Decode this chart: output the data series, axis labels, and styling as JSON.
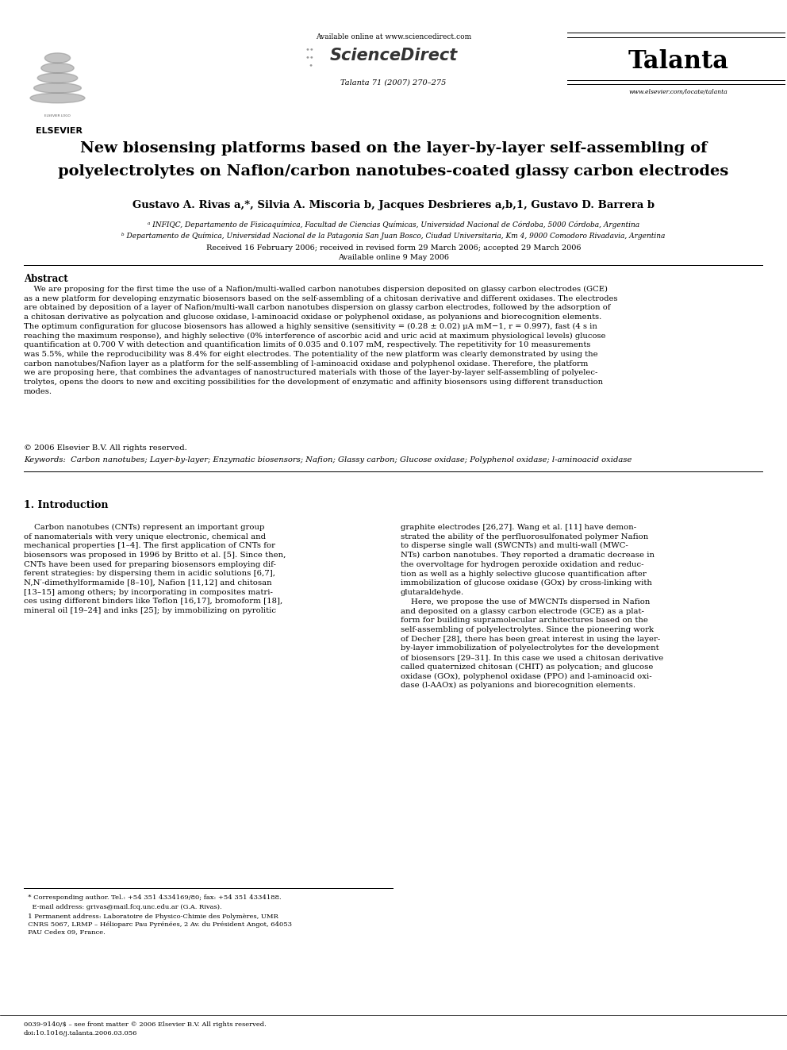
{
  "page_width": 9.92,
  "page_height": 13.23,
  "dpi": 100,
  "bg_color": "#ffffff",
  "header": {
    "available_online": "Available online at www.sciencedirect.com",
    "sciencedirect": "ScienceDirect",
    "journal_name": "Talanta",
    "journal_info": "Talanta 71 (2007) 270–275",
    "journal_url": "www.elsevier.com/locate/talanta",
    "elsevier": "ELSEVIER"
  },
  "title_line1": "New biosensing platforms based on the layer-by-layer self-assembling of",
  "title_line2": "polyelectrolytes on Nafion/carbon nanotubes-coated glassy carbon electrodes",
  "authors": "Gustavo A. Rivas a,*, Silvia A. Miscoria b, Jacques Desbrieres a,b,1, Gustavo D. Barrera b",
  "affiliation_a": "ᵃ INFIQC, Departamento de Fisicaquímica, Facultad de Ciencias Químicas, Universidad Nacional de Córdoba, 5000 Córdoba, Argentina",
  "affiliation_b": "ᵇ Departamento de Química, Universidad Nacional de la Patagonia San Juan Bosco, Ciudad Universitaria, Km 4, 9000 Comodoro Rivadavia, Argentina",
  "dates": "Received 16 February 2006; received in revised form 29 March 2006; accepted 29 March 2006",
  "available_online_date": "Available online 9 May 2006",
  "abstract_title": "Abstract",
  "abstract_text": "    We are proposing for the first time the use of a Nafion/multi-walled carbon nanotubes dispersion deposited on glassy carbon electrodes (GCE)\nas a new platform for developing enzymatic biosensors based on the self-assembling of a chitosan derivative and different oxidases. The electrodes\nare obtained by deposition of a layer of Nafion/multi-wall carbon nanotubes dispersion on glassy carbon electrodes, followed by the adsorption of\na chitosan derivative as polycation and glucose oxidase, l-aminoacid oxidase or polyphenol oxidase, as polyanions and biorecognition elements.\nThe optimum configuration for glucose biosensors has allowed a highly sensitive (sensitivity = (0.28 ± 0.02) μA mM−1, r = 0.997), fast (4 s in\nreaching the maximum response), and highly selective (0% interference of ascorbic acid and uric acid at maximum physiological levels) glucose\nquantification at 0.700 V with detection and quantification limits of 0.035 and 0.107 mM, respectively. The repetitivity for 10 measurements\nwas 5.5%, while the reproducibility was 8.4% for eight electrodes. The potentiality of the new platform was clearly demonstrated by using the\ncarbon nanotubes/Nafion layer as a platform for the self-assembling of l-aminoacid oxidase and polyphenol oxidase. Therefore, the platform\nwe are proposing here, that combines the advantages of nanostructured materials with those of the layer-by-layer self-assembling of polyelec-\ntrolytes, opens the doors to new and exciting possibilities for the development of enzymatic and affinity biosensors using different transduction\nmodes.",
  "copyright": "© 2006 Elsevier B.V. All rights reserved.",
  "keywords": "Keywords:  Carbon nanotubes; Layer-by-layer; Enzymatic biosensors; Nafion; Glassy carbon; Glucose oxidase; Polyphenol oxidase; l-aminoacid oxidase",
  "intro_title": "1. Introduction",
  "intro_col1": "    Carbon nanotubes (CNTs) represent an important group\nof nanomaterials with very unique electronic, chemical and\nmechanical properties [1–4]. The first application of CNTs for\nbiosensors was proposed in 1996 by Britto et al. [5]. Since then,\nCNTs have been used for preparing biosensors employing dif-\nferent strategies: by dispersing them in acidic solutions [6,7],\nN,N′-dimethylformamide [8–10], Nafion [11,12] and chitosan\n[13–15] among others; by incorporating in composites matri-\nces using different binders like Teflon [16,17], bromoform [18],\nmineral oil [19–24] and inks [25]; by immobilizing on pyrolitic",
  "intro_col2": "graphite electrodes [26,27]. Wang et al. [11] have demon-\nstrated the ability of the perfluorosulfonated polymer Nafion\nto disperse single wall (SWCNTs) and multi-wall (MWC-\nNTs) carbon nanotubes. They reported a dramatic decrease in\nthe overvoltage for hydrogen peroxide oxidation and reduc-\ntion as well as a highly selective glucose quantification after\nimmobilization of glucose oxidase (GOx) by cross-linking with\nglutaraldehyde.\n    Here, we propose the use of MWCNTs dispersed in Nafion\nand deposited on a glassy carbon electrode (GCE) as a plat-\nform for building supramolecular architectures based on the\nself-assembling of polyelectrolytes. Since the pioneering work\nof Decher [28], there has been great interest in using the layer-\nby-layer immobilization of polyelectrolytes for the development\nof biosensors [29–31]. In this case we used a chitosan derivative\ncalled quaternized chitosan (CHIT) as polycation; and glucose\noxidase (GOx), polyphenol oxidase (PPO) and l-aminoacid oxi-\ndase (l-AAOx) as polyanions and biorecognition elements.",
  "footnote1": "  * Corresponding author. Tel.: +54 351 4334169/80; fax: +54 351 4334188.",
  "footnote2": "    E-mail address: grivas@mail.fcq.unc.edu.ar (G.A. Rivas).",
  "footnote3": "  1 Permanent address: Laboratoire de Physico-Chimie des Polymères, UMR\n  CNRS 5067, LRMP – Hélioparc Pau Pyrénées, 2 Av. du Président Angot, 64053\n  PAU Cedex 09, France.",
  "bottom_text1": "0039-9140/$ – see front matter © 2006 Elsevier B.V. All rights reserved.",
  "bottom_text2": "doi:10.1016/j.talanta.2006.03.056"
}
